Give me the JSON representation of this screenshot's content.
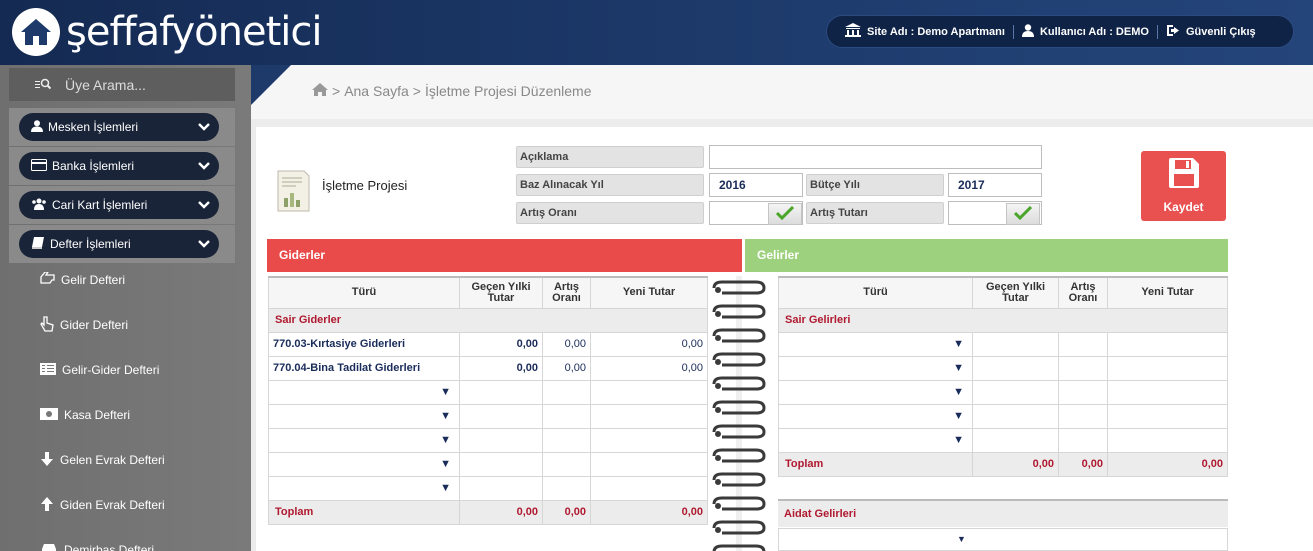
{
  "header": {
    "logo_text": "şeffafyönetici",
    "site": "Site Adı : Demo Apartmanı",
    "user": "Kullanıcı Adı : DEMO",
    "logout": "Güvenli Çıkış"
  },
  "sidebar": {
    "search_placeholder": "Üye Arama...",
    "menus": [
      {
        "label": "Mesken İşlemleri",
        "icon": "user-icon"
      },
      {
        "label": "Banka İşlemleri",
        "icon": "credit-card-icon"
      },
      {
        "label": "Cari Kart İşlemleri",
        "icon": "users-icon"
      },
      {
        "label": "Defter İşlemleri",
        "icon": "book-icon"
      }
    ],
    "subitems": [
      {
        "label": "Gelir Defteri",
        "icon": "hand-left-icon"
      },
      {
        "label": "Gider Defteri",
        "icon": "hand-up-icon"
      },
      {
        "label": "Gelir-Gider Defteri",
        "icon": "list-icon"
      },
      {
        "label": "Kasa Defteri",
        "icon": "money-icon"
      },
      {
        "label": "Gelen Evrak Defteri",
        "icon": "arrow-down-icon"
      },
      {
        "label": "Giden Evrak Defteri",
        "icon": "arrow-up-icon"
      },
      {
        "label": "Demirbaş Defteri",
        "icon": "car-icon"
      }
    ]
  },
  "breadcrumb": {
    "home": "Ana Sayfa",
    "current": "İşletme Projesi Düzenleme",
    "sep": ">"
  },
  "form": {
    "title": "İşletme Projesi",
    "aciklama_label": "Açıklama",
    "aciklama_value": "",
    "baz_yil_label": "Baz Alınacak Yıl",
    "baz_yil_value": "2016",
    "butce_yil_label": "Bütçe Yılı",
    "butce_yil_value": "2017",
    "artis_orani_label": "Artış Oranı",
    "artis_orani_value": "",
    "artis_tutari_label": "Artış Tutarı",
    "artis_tutari_value": "",
    "save_label": "Kaydet"
  },
  "colors": {
    "gider": "#e94b4b",
    "gelir": "#9dd17d",
    "save": "#e95050",
    "header": "#1d3a6b"
  },
  "giderler": {
    "title": "Giderler",
    "columns": [
      "Türü",
      "Geçen Yılki Tutar",
      "Artış Oranı",
      "Yeni Tutar"
    ],
    "section": "Sair Giderler",
    "rows": [
      {
        "name": "770.03-Kırtasiye Giderleri",
        "prev": "0,00",
        "rate": "0,00",
        "new": "0,00"
      },
      {
        "name": "770.04-Bina Tadilat Giderleri",
        "prev": "0,00",
        "rate": "0,00",
        "new": "0,00"
      }
    ],
    "total_label": "Toplam",
    "total": {
      "prev": "0,00",
      "rate": "0,00",
      "new": "0,00"
    }
  },
  "gelirler": {
    "title": "Gelirler",
    "columns": [
      "Türü",
      "Geçen Yılki Tutar",
      "Artış Oranı",
      "Yeni Tutar"
    ],
    "section": "Sair Gelirleri",
    "total_label": "Toplam",
    "total": {
      "prev": "0,00",
      "rate": "0,00",
      "new": "0,00"
    },
    "section2": "Aidat Gelirleri"
  }
}
